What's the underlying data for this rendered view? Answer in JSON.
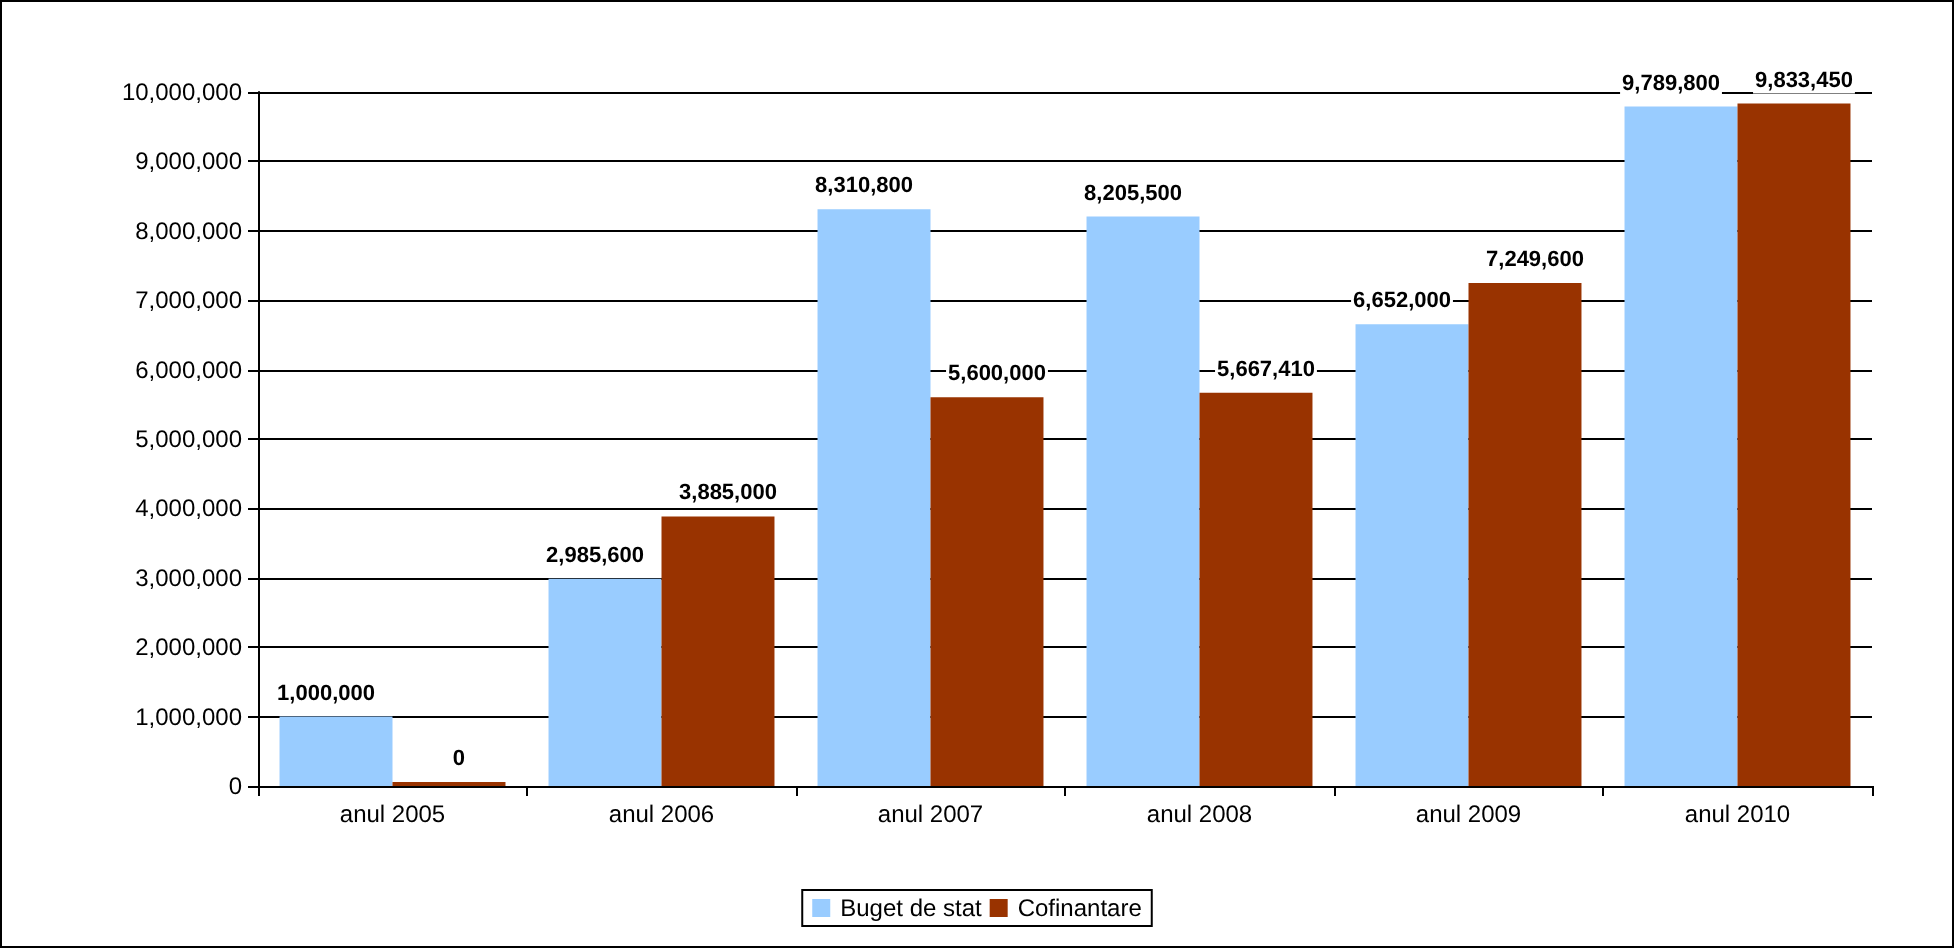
{
  "chart_data": {
    "type": "bar",
    "categories": [
      "anul 2005",
      "anul 2006",
      "anul 2007",
      "anul 2008",
      "anul 2009",
      "anul 2010"
    ],
    "series": [
      {
        "name": "Buget de stat",
        "color": "#99ccff",
        "values": [
          1000000,
          2985600,
          8310800,
          8205500,
          6652000,
          9789800
        ],
        "value_labels": [
          "1,000,000",
          "2,985,600",
          "8,310,800",
          "8,205,500",
          "6,652,000",
          "9,789,800"
        ]
      },
      {
        "name": "Cofinantare",
        "color": "#993300",
        "values": [
          0,
          3885000,
          5600000,
          5667410,
          7249600,
          9833450
        ],
        "value_labels": [
          "0",
          "3,885,000",
          "5,600,000",
          "5,667,410",
          "7,249,600",
          "9,833,450"
        ]
      }
    ],
    "ylim": [
      0,
      10000000
    ],
    "yticks": [
      0,
      {
        "value": 1000000,
        "label": "1,000,000"
      },
      {
        "value": 2000000,
        "label": "2,000,000"
      },
      {
        "value": 3000000,
        "label": "3,000,000"
      },
      {
        "value": 4000000,
        "label": "4,000,000"
      },
      {
        "value": 5000000,
        "label": "5,000,000"
      },
      {
        "value": 6000000,
        "label": "6,000,000"
      },
      {
        "value": 7000000,
        "label": "7,000,000"
      },
      {
        "value": 8000000,
        "label": "8,000,000"
      },
      {
        "value": 9000000,
        "label": "9,000,000"
      },
      {
        "value": 10000000,
        "label": "10,000,000"
      }
    ],
    "grid": "y",
    "legend": "bottom"
  }
}
